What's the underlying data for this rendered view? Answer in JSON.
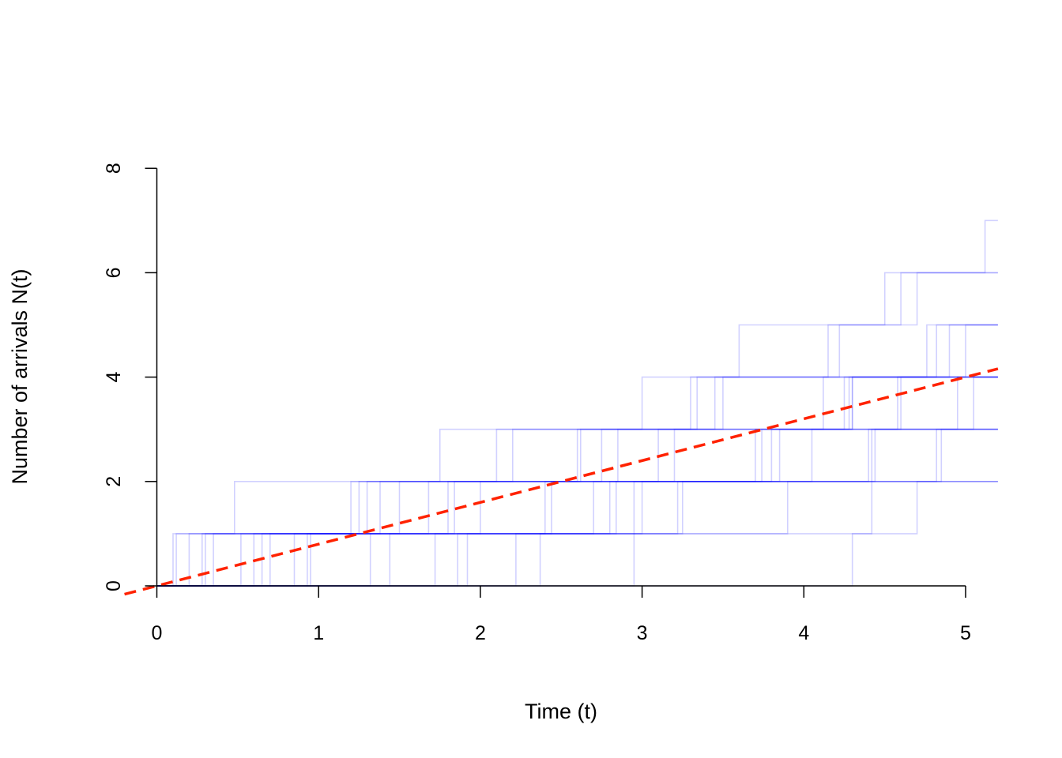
{
  "chart_data": {
    "type": "line",
    "xlabel": "Time (t)",
    "ylabel": "Number of arrivals N(t)",
    "xlim": [
      0,
      5.2
    ],
    "ylim": [
      0,
      8
    ],
    "x_ticks": [
      0,
      1,
      2,
      3,
      4,
      5
    ],
    "y_ticks": [
      0,
      2,
      4,
      6,
      8
    ],
    "grid": false,
    "colors": {
      "paths": "#0000ff",
      "expected": "#ff2200"
    },
    "expected_line": {
      "slope": 0.8,
      "intercept": 0,
      "style": "dashed"
    },
    "sample_paths": [
      [
        0.1,
        2.84,
        3.7,
        4.6,
        5.0
      ],
      [
        0.12,
        1.25,
        2.85,
        4.28
      ],
      [
        0.2,
        2.4,
        3.2,
        4.3
      ],
      [
        0.3,
        0.48,
        1.75,
        3.5,
        4.15,
        4.5,
        5.12
      ],
      [
        0.35,
        1.3,
        2.75,
        4.25
      ],
      [
        0.52,
        1.2,
        2.6,
        3.34,
        4.9
      ],
      [
        0.6,
        2.0,
        3.8
      ],
      [
        0.65,
        1.5,
        2.1,
        3.45
      ],
      [
        0.7,
        1.8,
        3.1,
        4.12,
        4.22,
        4.6
      ],
      [
        0.85,
        2.44,
        3.85
      ],
      [
        0.93,
        1.68,
        2.62,
        3.0,
        3.6,
        4.7
      ],
      [
        1.32,
        2.7,
        4.82
      ],
      [
        1.44,
        3.0,
        4.4
      ],
      [
        1.72,
        3.22,
        4.85,
        5.05
      ],
      [
        1.86,
        3.25
      ],
      [
        1.92,
        2.95,
        4.42,
        4.95
      ],
      [
        2.22,
        2.8,
        4.05,
        4.58
      ],
      [
        2.37,
        3.9
      ],
      [
        2.95,
        4.7
      ],
      [
        4.3,
        4.42,
        4.44
      ],
      [
        0.95,
        1.38,
        2.2,
        3.3,
        4.76
      ],
      [
        0.28,
        1.84,
        3.74,
        4.3,
        4.82
      ]
    ]
  }
}
